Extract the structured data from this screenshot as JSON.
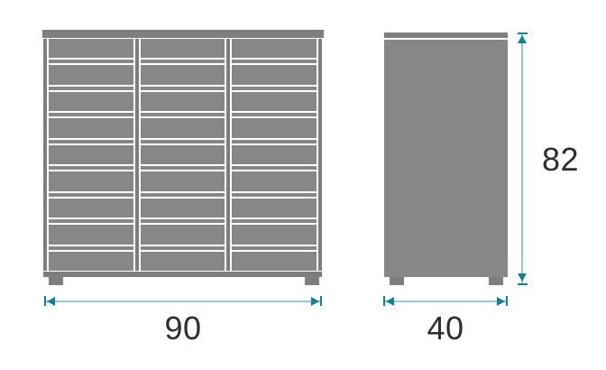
{
  "diagram": {
    "kind": "cabinet-dimension-drawing",
    "front_view": {
      "name": "front view",
      "columns": 3,
      "drawer_rows": 9
    },
    "side_view": {
      "name": "side view"
    }
  },
  "dimensions": {
    "width": "90",
    "depth": "40",
    "height": "82"
  },
  "colors": {
    "panel_gray": "#878787",
    "frame_gray": "#7e7e7e",
    "dim_line_teal": "#8fccda",
    "dim_arrow_teal": "#0e7f9f",
    "label_text": "#2e2e2e",
    "background": "#ffffff"
  }
}
